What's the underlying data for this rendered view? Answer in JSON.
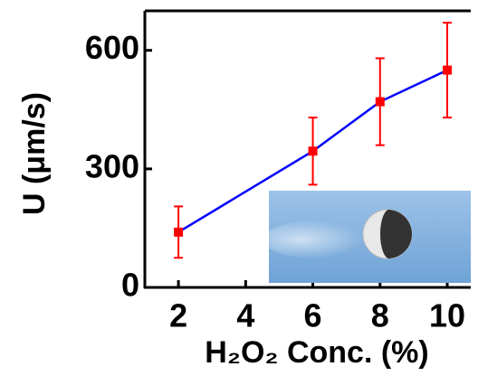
{
  "chart_data": {
    "type": "line",
    "x_label": "H₂O₂ Conc. (%)",
    "y_label": "U (μm/s)",
    "x": [
      2,
      6,
      8,
      10
    ],
    "series": [
      {
        "color": "#0000ff",
        "marker_color": "#ff0000",
        "error_color": "#ff0000",
        "values": [
          140,
          345,
          470,
          550
        ],
        "errors": [
          65,
          85,
          110,
          120
        ]
      }
    ],
    "xlim": [
      1,
      10.7
    ],
    "ylim": [
      0,
      700
    ],
    "xticks": [
      2,
      4,
      6,
      8,
      10
    ],
    "yticks": [
      0,
      300,
      600
    ]
  }
}
